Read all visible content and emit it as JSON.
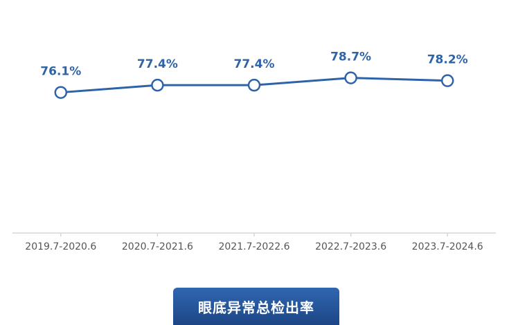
{
  "chart_data": {
    "type": "line",
    "title": "眼底异常总检出率",
    "categories": [
      "2019.7-2020.6",
      "2020.7-2021.6",
      "2021.7-2022.6",
      "2022.7-2023.6",
      "2023.7-2024.6"
    ],
    "values": [
      76.1,
      77.4,
      77.4,
      78.7,
      78.2
    ],
    "value_labels": [
      "76.1%",
      "77.4%",
      "77.4%",
      "78.7%",
      "78.2%"
    ],
    "color": "#2e63a8",
    "ylim": [
      51,
      86
    ]
  }
}
